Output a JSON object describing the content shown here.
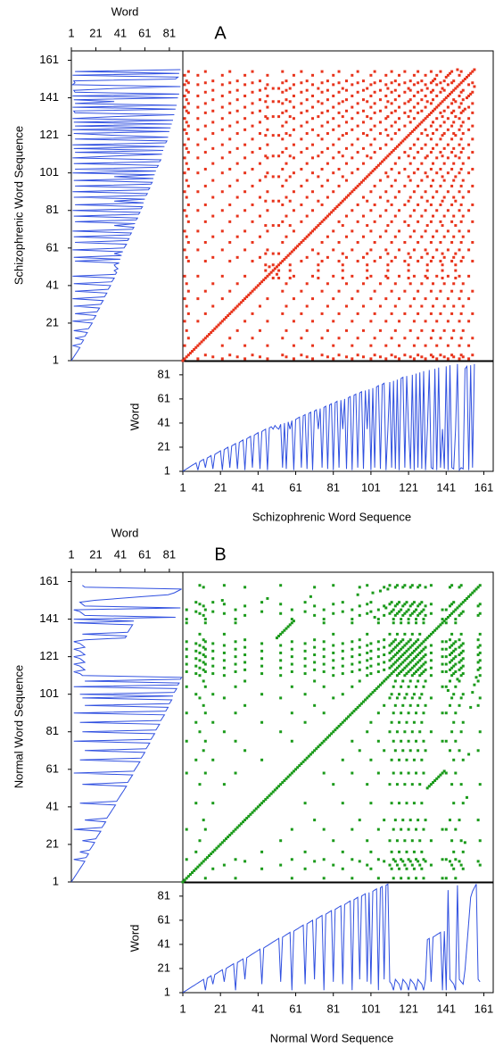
{
  "chart_data": [
    {
      "type": "recurrence",
      "title": "A",
      "word_label": "Word",
      "sequence_label": "Schizophrenic Word Sequence",
      "color": "#e8341c",
      "line_color": "#3050e0",
      "values": [
        1,
        2,
        3,
        4,
        5,
        6,
        7,
        8,
        2,
        9,
        10,
        11,
        4,
        12,
        13,
        14,
        3,
        15,
        16,
        17,
        18,
        2,
        19,
        20,
        21,
        4,
        22,
        23,
        24,
        3,
        25,
        26,
        27,
        2,
        28,
        29,
        30,
        4,
        31,
        32,
        33,
        3,
        34,
        35,
        36,
        2,
        37,
        38,
        36,
        39,
        37,
        36,
        40,
        4,
        41,
        3,
        42,
        36,
        43,
        2,
        44,
        45,
        46,
        4,
        47,
        48,
        3,
        49,
        50,
        2,
        51,
        52,
        36,
        53,
        4,
        54,
        55,
        3,
        56,
        57,
        2,
        58,
        59,
        4,
        60,
        36,
        61,
        3,
        62,
        63,
        2,
        64,
        65,
        4,
        66,
        67,
        3,
        68,
        36,
        69,
        2,
        70,
        4,
        71,
        72,
        3,
        73,
        74,
        2,
        36,
        75,
        4,
        76,
        3,
        77,
        2,
        78,
        79,
        4,
        80,
        36,
        3,
        81,
        2,
        82,
        4,
        83,
        3,
        84,
        2,
        36,
        85,
        4,
        3,
        86,
        2,
        87,
        4,
        36,
        3,
        88,
        2,
        89,
        4,
        3,
        36,
        90,
        2,
        4,
        3,
        86,
        88,
        2,
        89,
        4,
        90
      ],
      "seqlim": [
        1,
        166
      ],
      "seqticks": [
        1,
        21,
        41,
        61,
        81,
        101,
        121,
        141,
        161
      ],
      "wordlim": [
        1,
        92
      ],
      "wordticks": [
        1,
        21,
        41,
        61,
        81
      ]
    },
    {
      "type": "recurrence",
      "title": "B",
      "word_label": "Word",
      "sequence_label": "Normal Word Sequence",
      "color": "#1a9a1a",
      "line_color": "#3050e0",
      "values": [
        1,
        2,
        3,
        4,
        5,
        6,
        7,
        8,
        9,
        10,
        11,
        12,
        3,
        13,
        14,
        15,
        8,
        16,
        17,
        18,
        19,
        20,
        10,
        21,
        22,
        23,
        24,
        25,
        3,
        26,
        27,
        28,
        29,
        12,
        30,
        31,
        32,
        33,
        34,
        35,
        36,
        37,
        8,
        38,
        39,
        40,
        41,
        42,
        43,
        44,
        45,
        46,
        10,
        47,
        48,
        49,
        50,
        51,
        3,
        52,
        53,
        54,
        55,
        56,
        57,
        8,
        58,
        59,
        60,
        61,
        12,
        62,
        63,
        64,
        65,
        3,
        66,
        67,
        68,
        69,
        10,
        70,
        71,
        72,
        73,
        8,
        74,
        75,
        76,
        77,
        3,
        78,
        79,
        80,
        12,
        81,
        82,
        83,
        10,
        84,
        8,
        85,
        86,
        87,
        3,
        88,
        89,
        12,
        90,
        91,
        10,
        8,
        3,
        12,
        10,
        8,
        3,
        12,
        10,
        8,
        3,
        12,
        10,
        8,
        3,
        12,
        10,
        8,
        3,
        12,
        45,
        46,
        10,
        47,
        48,
        49,
        50,
        51,
        3,
        52,
        3,
        86,
        12,
        10,
        8,
        3,
        90,
        12,
        10,
        8,
        20,
        40,
        60,
        80,
        85,
        88,
        91,
        12,
        10
      ],
      "seqlim": [
        1,
        166
      ],
      "seqticks": [
        1,
        21,
        41,
        61,
        81,
        101,
        121,
        141,
        161
      ],
      "wordlim": [
        1,
        92
      ],
      "wordticks": [
        1,
        21,
        41,
        61,
        81
      ]
    }
  ]
}
